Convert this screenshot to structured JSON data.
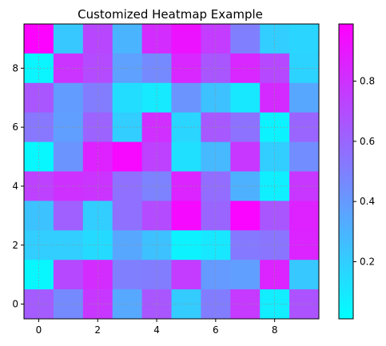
{
  "chart_data": {
    "type": "heatmap",
    "title": "Customized Heatmap Example",
    "xlabel": "",
    "ylabel": "",
    "rows": 10,
    "cols": 10,
    "x_ticks": [
      0,
      2,
      4,
      6,
      8
    ],
    "y_ticks": [
      0,
      2,
      4,
      6,
      8
    ],
    "xlim": [
      -0.5,
      9.5
    ],
    "ylim": [
      9.5,
      -0.5
    ],
    "grid": true,
    "colormap": "cool",
    "colormap_colors": [
      "#00ffff",
      "#ff00ff"
    ],
    "colorbar": {
      "range": [
        0.01,
        0.99
      ],
      "ticks": [
        0.2,
        0.4,
        0.6,
        0.8
      ],
      "tick_labels": [
        "0.2",
        "0.4",
        "0.6",
        "0.8"
      ],
      "placement": "right"
    },
    "values": [
      [
        0.98,
        0.22,
        0.72,
        0.3,
        0.82,
        0.92,
        0.76,
        0.5,
        0.2,
        0.17
      ],
      [
        0.05,
        0.79,
        0.7,
        0.37,
        0.46,
        0.84,
        0.66,
        0.84,
        0.71,
        0.18
      ],
      [
        0.66,
        0.39,
        0.51,
        0.14,
        0.09,
        0.42,
        0.25,
        0.1,
        0.83,
        0.35
      ],
      [
        0.53,
        0.38,
        0.61,
        0.2,
        0.81,
        0.17,
        0.65,
        0.55,
        0.06,
        0.6
      ],
      [
        0.04,
        0.42,
        0.86,
        0.96,
        0.74,
        0.13,
        0.28,
        0.78,
        0.2,
        0.45
      ],
      [
        0.74,
        0.8,
        0.79,
        0.56,
        0.49,
        0.85,
        0.57,
        0.31,
        0.07,
        0.78
      ],
      [
        0.24,
        0.62,
        0.2,
        0.56,
        0.7,
        0.95,
        0.6,
        0.97,
        0.66,
        0.86
      ],
      [
        0.2,
        0.2,
        0.15,
        0.35,
        0.25,
        0.06,
        0.1,
        0.52,
        0.54,
        0.85
      ],
      [
        0.04,
        0.71,
        0.82,
        0.5,
        0.51,
        0.76,
        0.4,
        0.38,
        0.85,
        0.22
      ],
      [
        0.64,
        0.46,
        0.78,
        0.34,
        0.66,
        0.21,
        0.51,
        0.77,
        0.08,
        0.67
      ]
    ]
  }
}
